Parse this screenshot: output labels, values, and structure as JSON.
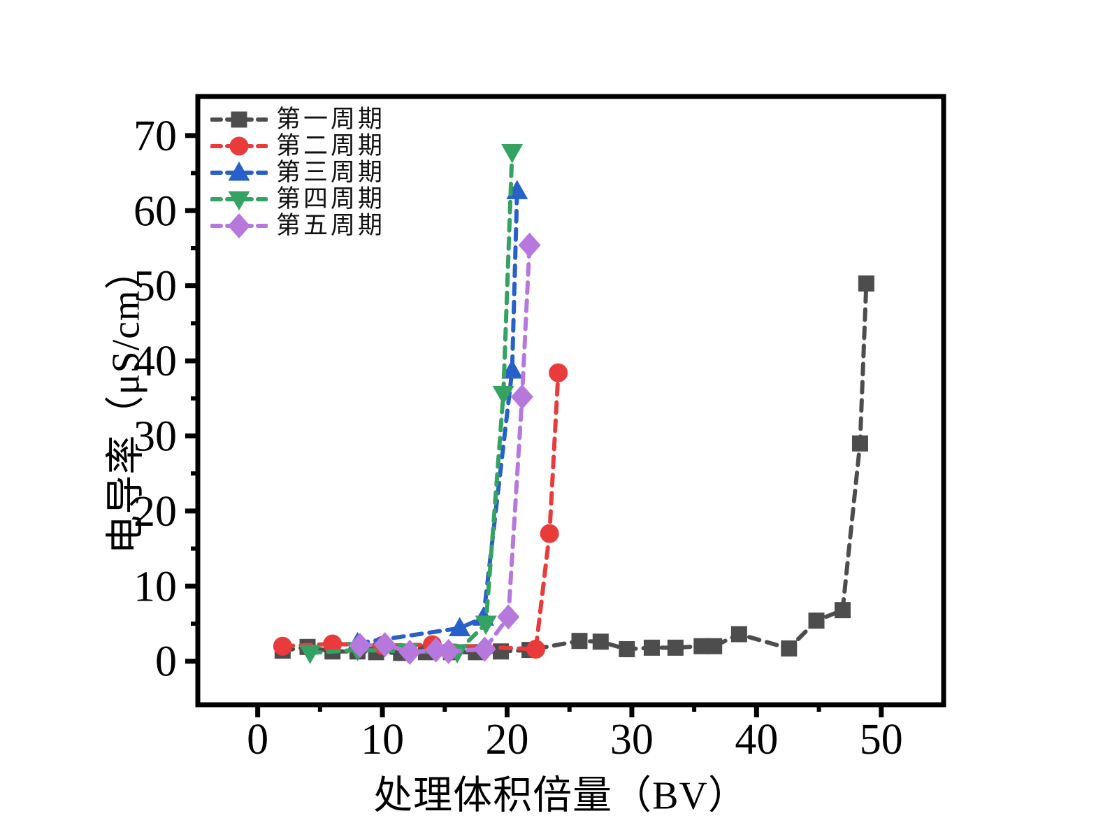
{
  "chart_data": {
    "type": "line",
    "title": "",
    "xlabel": "处理体积倍量（BV）",
    "ylabel": "电导率（μS/cm）",
    "xlim": [
      -4.8,
      55.0
    ],
    "ylim": [
      -5.8,
      75.2
    ],
    "x_ticks": [
      0,
      10,
      20,
      30,
      40,
      50
    ],
    "x_minor_ticks": [
      5,
      15,
      25,
      35,
      45
    ],
    "y_ticks": [
      0,
      10,
      20,
      30,
      40,
      50,
      60,
      70
    ],
    "y_minor_ticks": [
      5,
      15,
      25,
      35,
      45,
      55,
      65
    ],
    "grid": false,
    "legend_position": "upper-left-inside",
    "axis_color": "#000000",
    "background": "#ffffff",
    "series": [
      {
        "name": "第一周期",
        "marker": "square",
        "color": "#4d4d4d",
        "x": [
          2,
          4,
          6,
          8,
          9.5,
          11.5,
          13.5,
          15.5,
          17.5,
          19.5,
          21.8,
          25.8,
          27.5,
          29.6,
          31.6,
          33.5,
          35.6,
          36.6,
          38.6,
          42.6,
          44.8,
          46.9,
          48.3,
          48.8
        ],
        "y": [
          1.4,
          1.9,
          1.3,
          1.3,
          1.2,
          1.1,
          1.2,
          1.2,
          1.2,
          1.3,
          1.5,
          2.7,
          2.6,
          1.6,
          1.8,
          1.8,
          2.0,
          2.0,
          3.6,
          1.7,
          5.4,
          6.8,
          29.0,
          50.3
        ]
      },
      {
        "name": "第二周期",
        "marker": "circle",
        "color": "#ea3b3c",
        "x": [
          2,
          6,
          10,
          14,
          22.3,
          23.4,
          24.1
        ],
        "y": [
          2.0,
          2.3,
          2.1,
          2.2,
          1.6,
          17.0,
          38.4
        ]
      },
      {
        "name": "第三周期",
        "marker": "triangle-up",
        "color": "#2760c8",
        "x": [
          8,
          16.2,
          18.1,
          20.4,
          20.8
        ],
        "y": [
          2.4,
          4.4,
          5.8,
          38.7,
          62.6
        ]
      },
      {
        "name": "第四周期",
        "marker": "triangle-down",
        "color": "#34a263",
        "x": [
          4.2,
          8,
          12,
          16,
          18.3,
          19.7,
          20.4
        ],
        "y": [
          1.1,
          1.5,
          1.3,
          1.2,
          5.0,
          35.6,
          67.8
        ]
      },
      {
        "name": "第五周期",
        "marker": "diamond",
        "color": "#b678dc",
        "x": [
          8.2,
          10.2,
          12.2,
          14.3,
          15.3,
          18.2,
          20.1,
          21.2,
          21.8
        ],
        "y": [
          2.1,
          2.2,
          1.2,
          1.5,
          1.3,
          1.6,
          5.9,
          35.2,
          55.4
        ]
      }
    ]
  }
}
